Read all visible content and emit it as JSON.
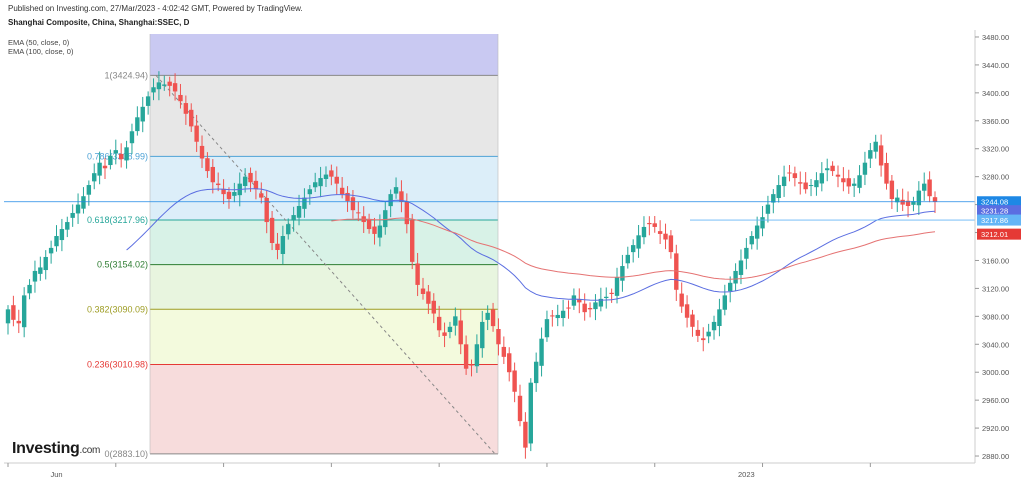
{
  "header": {
    "published": "Published on Investing.com, 27/Mar/2023 - 4:02:42 GMT, Powered by TradingView.",
    "title": "Shanghai Composite, China, Shanghai:SSEC, D"
  },
  "indicators": [
    "EMA (50, close, 0)",
    "EMA (100, close, 0)"
  ],
  "logo": {
    "text": "Investing",
    "suffix": ".com"
  },
  "colors": {
    "up": "#26a69a",
    "down": "#ef5350",
    "ema50": "#5b6ee1",
    "ema100": "#e57373",
    "fib_1": "#c9c9f2",
    "fib_0786": "#e4e4e4",
    "fib_0618": "#d8ecf8",
    "fib_05": "#d4f1e4",
    "fib_0382": "#e6f4dc",
    "fib_0236": "#f2fad9",
    "fib_0": "#f6d8d8"
  },
  "chart_data": {
    "type": "candlestick",
    "title": "Shanghai Composite, China, Shanghai:SSEC, D",
    "ylim": [
      2870,
      3490
    ],
    "y_ticks": [
      3480,
      3440,
      3400,
      3360,
      3320,
      3280,
      3240,
      3200,
      3160,
      3120,
      3080,
      3040,
      3000,
      2960,
      2920,
      2880
    ],
    "x_labels": [
      {
        "label": "Jun",
        "i": 9
      },
      {
        "label": "2023",
        "i": 137
      }
    ],
    "grid": false,
    "fibonacci": [
      {
        "level": "1",
        "value": 3424.94
      },
      {
        "level": "0.786",
        "value": 3308.99
      },
      {
        "level": "0.618",
        "value": 3217.96
      },
      {
        "level": "0.5",
        "value": 3154.02
      },
      {
        "level": "0.382",
        "value": 3090.09
      },
      {
        "level": "0.236",
        "value": 3010.98
      },
      {
        "level": "0",
        "value": 2883.1
      }
    ],
    "fib_labels": [
      "1(3424.94)",
      "0.786(3308.99)",
      "0.618(3217.96)",
      "0.5(3154.02)",
      "0.382(3090.09)",
      "0.236(3010.98)",
      "0(2883.10)"
    ],
    "price_labels": [
      {
        "text": "3244.08",
        "value": 3244.08,
        "color": "#1e88e5"
      },
      {
        "text": "3231.28",
        "value": 3231.28,
        "color": "#5b6ee1"
      },
      {
        "text": "3217.86",
        "value": 3217.86,
        "color": "#64b5f6"
      },
      {
        "text": "3212.01",
        "value": 3212.01,
        "color": "#e53935"
      }
    ],
    "current_price": 3244.08,
    "closes": [
      3090,
      3075,
      3070,
      3110,
      3125,
      3145,
      3150,
      3165,
      3178,
      3195,
      3205,
      3215,
      3228,
      3240,
      3252,
      3268,
      3285,
      3300,
      3292,
      3310,
      3318,
      3305,
      3322,
      3345,
      3365,
      3380,
      3395,
      3408,
      3415,
      3412,
      3410,
      3402,
      3388,
      3370,
      3352,
      3330,
      3306,
      3288,
      3272,
      3268,
      3255,
      3248,
      3258,
      3270,
      3280,
      3272,
      3262,
      3250,
      3215,
      3185,
      3175,
      3195,
      3212,
      3225,
      3238,
      3250,
      3262,
      3272,
      3278,
      3283,
      3280,
      3270,
      3255,
      3245,
      3232,
      3228,
      3215,
      3205,
      3198,
      3210,
      3232,
      3255,
      3265,
      3244,
      3212,
      3158,
      3125,
      3112,
      3098,
      3084,
      3060,
      3052,
      3065,
      3080,
      3040,
      3005,
      3010,
      3040,
      3072,
      3085,
      3066,
      3040,
      3022,
      3000,
      2972,
      2930,
      2892,
      2985,
      3015,
      3048,
      3076,
      3081,
      3082,
      3088,
      3092,
      3110,
      3100,
      3086,
      3090,
      3100,
      3105,
      3108,
      3112,
      3136,
      3152,
      3168,
      3182,
      3196,
      3208,
      3212,
      3208,
      3198,
      3190,
      3172,
      3118,
      3094,
      3078,
      3065,
      3052,
      3046,
      3058,
      3072,
      3090,
      3110,
      3128,
      3145,
      3160,
      3178,
      3195,
      3210,
      3222,
      3240,
      3255,
      3268,
      3280,
      3285,
      3278,
      3270,
      3262,
      3268,
      3275,
      3285,
      3292,
      3288,
      3280,
      3272,
      3266,
      3270,
      3282,
      3300,
      3318,
      3330,
      3296,
      3270,
      3248,
      3250,
      3240,
      3238,
      3245,
      3260,
      3270,
      3252,
      3244
    ],
    "candle_sample": [
      {
        "o": 3110,
        "h": 3116,
        "l": 3048,
        "c": 3058
      },
      {
        "o": 3424,
        "h": 3426,
        "l": 3398,
        "c": 3405
      },
      {
        "o": 2955,
        "h": 2990,
        "l": 2883,
        "c": 2895
      },
      {
        "o": 3150,
        "h": 3160,
        "l": 3140,
        "c": 3155
      }
    ]
  }
}
